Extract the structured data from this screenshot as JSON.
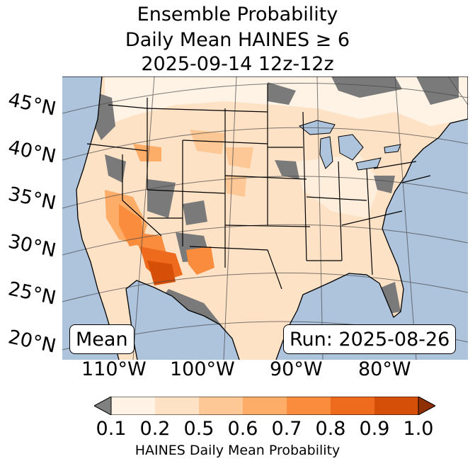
{
  "title": {
    "line1": "Ensemble Probability",
    "line2": "Daily Mean HAINES ≥ 6",
    "line3": "2025-09-14 12z-12z"
  },
  "labels": {
    "mode": "Mean",
    "run": "Run: 2025-08-26"
  },
  "latitudes": [
    "45°N",
    "40°N",
    "35°N",
    "30°N",
    "25°N",
    "20°N"
  ],
  "longitudes": [
    "110°W",
    "100°W",
    "90°W",
    "80°W"
  ],
  "colorbar": {
    "ticks": [
      "0.1",
      "0.2",
      "0.5",
      "0.6",
      "0.7",
      "0.8",
      "0.9",
      "1.0"
    ],
    "colors": [
      "#fff3e6",
      "#fee2c6",
      "#fdc895",
      "#fdad68",
      "#f98c3d",
      "#ee6b1e",
      "#d64f08",
      "#8e2f04"
    ],
    "under_color": "#808080",
    "label": "HAINES Daily Mean Probability"
  },
  "map_colors": {
    "ocean": "#aec3dc",
    "land_gray": "#7a7a7a",
    "lake": "#aec3dc"
  }
}
